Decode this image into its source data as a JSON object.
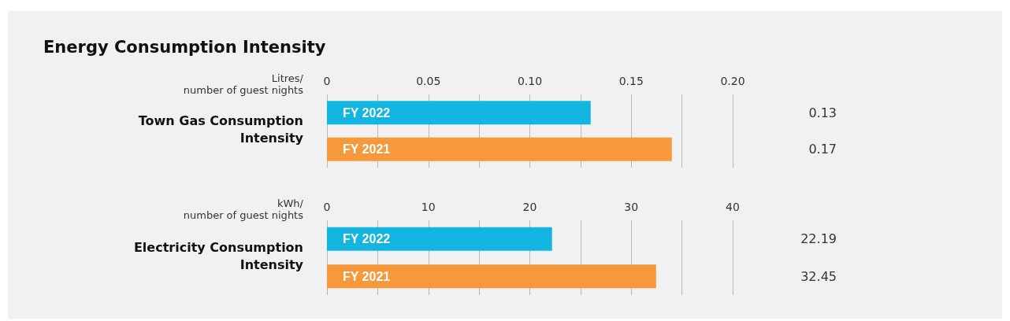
{
  "chart_data": [
    {
      "type": "bar",
      "orientation": "horizontal",
      "title": "Energy Consumption Intensity",
      "xlabel": "Litres/\nnumber of guest nights",
      "ylabel": "Town Gas Consumption\nIntensity",
      "categories": [
        "FY 2022",
        "FY 2021"
      ],
      "values": [
        0.13,
        0.17
      ],
      "colors": [
        "#13b5e1",
        "#f7993a"
      ],
      "xlim": [
        0,
        0.2
      ],
      "xticks": [
        0,
        {
          "value": 0.025,
          "label": null
        },
        0.05,
        {
          "value": 0.075,
          "label": null
        },
        {
          "value": 0.1,
          "label": "0.10"
        },
        {
          "value": 0.125,
          "label": null
        },
        0.15,
        {
          "value": 0.175,
          "label": null
        },
        {
          "value": 0.2,
          "label": "0.20"
        }
      ],
      "grid": "x",
      "data_labels": true
    },
    {
      "type": "bar",
      "orientation": "horizontal",
      "xlabel": "kWh/\nnumber of guest nights",
      "ylabel": "Electricity Consumption\nIntensity",
      "categories": [
        "FY 2022",
        "FY 2021"
      ],
      "values": [
        22.19,
        32.45
      ],
      "colors": [
        "#13b5e1",
        "#f7993a"
      ],
      "xlim": [
        0,
        40
      ],
      "xticks": [
        0,
        {
          "value": 5,
          "label": null
        },
        10,
        {
          "value": 15,
          "label": null
        },
        20,
        {
          "value": 25,
          "label": null
        },
        30,
        {
          "value": 35,
          "label": null
        },
        40
      ],
      "grid": "x",
      "data_labels": true
    }
  ]
}
